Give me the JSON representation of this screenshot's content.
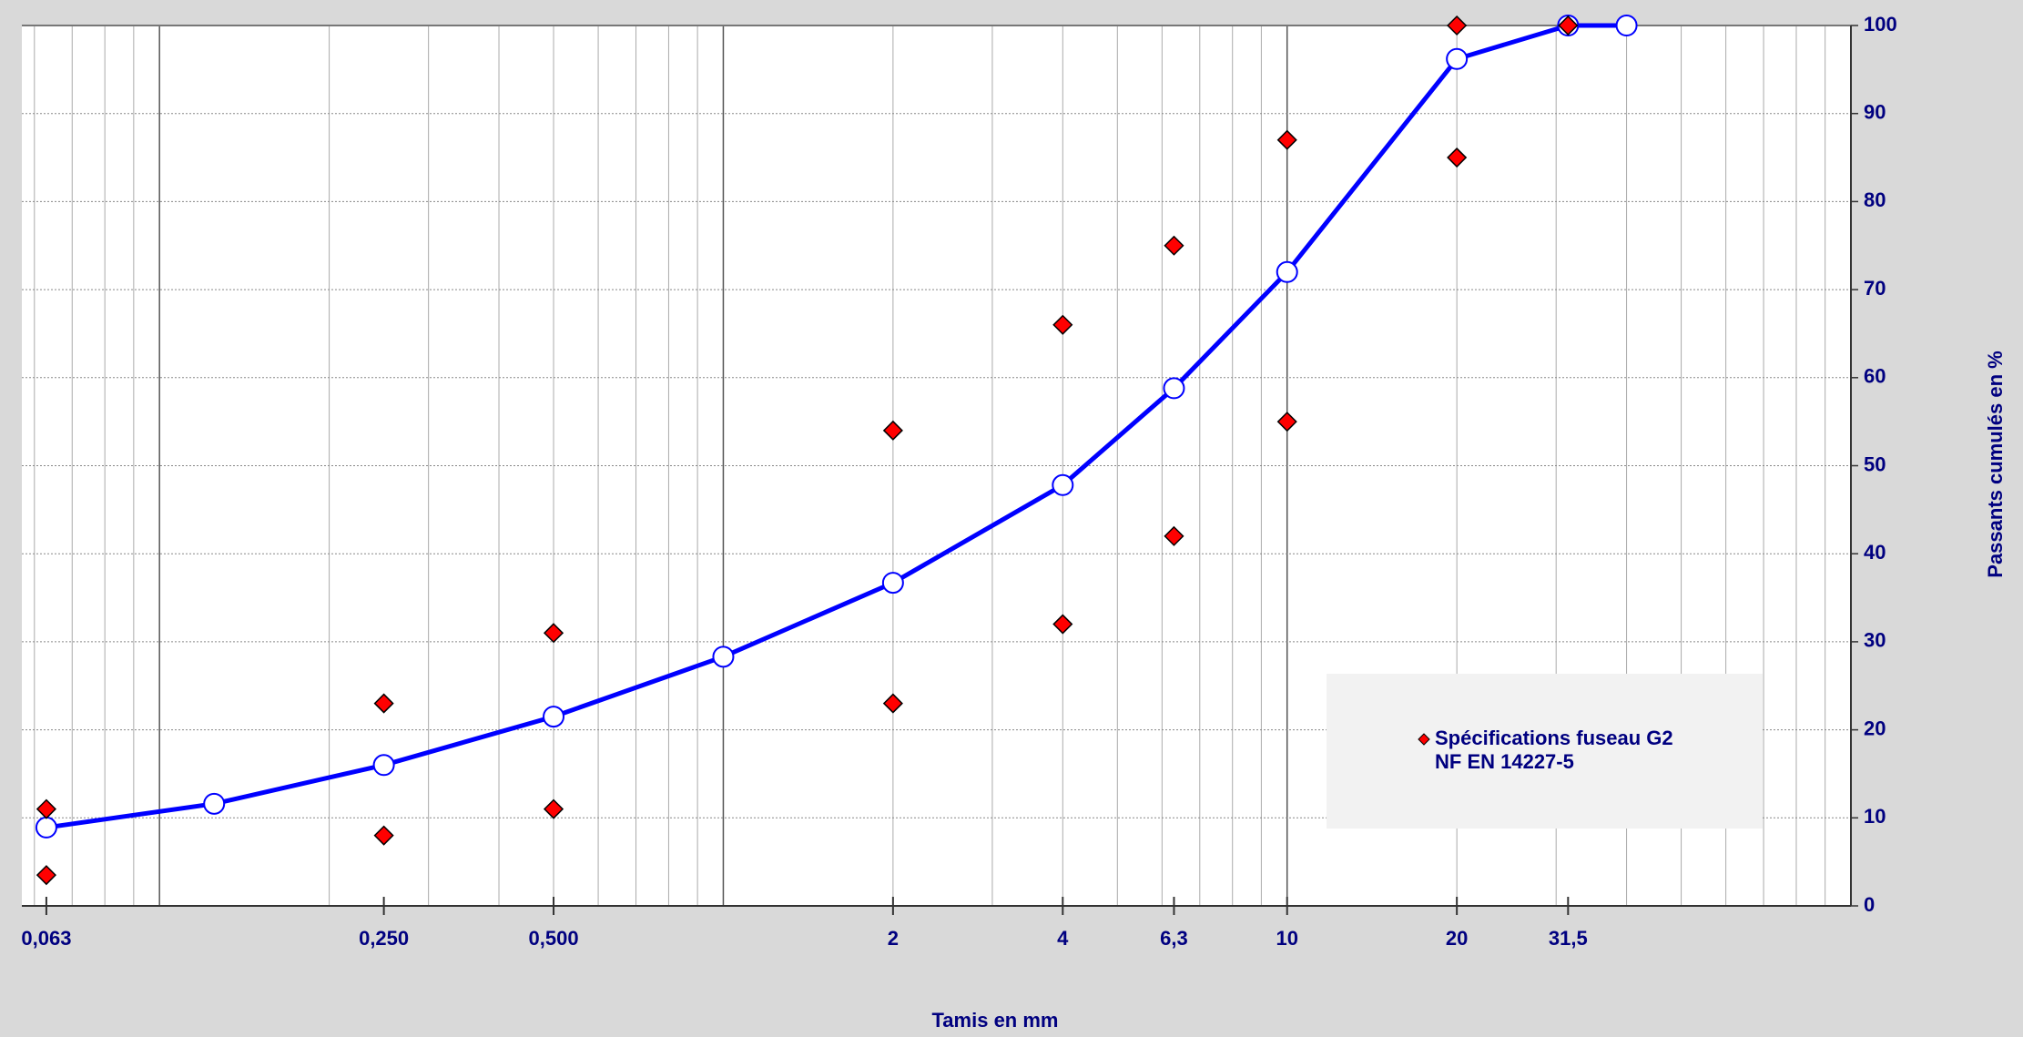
{
  "chart_data": {
    "type": "line",
    "x_label": "Tamis en mm",
    "y_label": "Passants cumulés en %",
    "xscale": "log",
    "grid": true,
    "xlim": [
      0.057,
      100
    ],
    "ylim": [
      0,
      100
    ],
    "xticks": [
      {
        "value": 0.063,
        "label": "0,063"
      },
      {
        "value": 0.25,
        "label": "0,250"
      },
      {
        "value": 0.5,
        "label": "0,500"
      },
      2,
      4,
      {
        "value": 6.3,
        "label": "6,3"
      },
      10,
      20,
      {
        "value": 31.5,
        "label": "31,5"
      }
    ],
    "yticks": [
      0,
      10,
      20,
      30,
      40,
      50,
      60,
      70,
      80,
      90,
      100
    ],
    "legend_position": "lower right",
    "series": [
      {
        "color": "#0000ff",
        "x": [
          0.063,
          0.125,
          0.25,
          0.5,
          1,
          2,
          4,
          6.3,
          10,
          20,
          31.5,
          40
        ],
        "values": [
          8.9,
          11.6,
          16,
          21.5,
          28.3,
          36.7,
          47.8,
          58.8,
          72,
          96.2,
          100,
          100
        ]
      },
      {
        "name": "Spécifications fuseau G2",
        "legend_note": "NF EN 14227-5",
        "type": "scatter",
        "color": "#ff0000",
        "x": [
          0.063,
          0.063,
          0.25,
          0.25,
          0.5,
          0.5,
          2,
          2,
          4,
          4,
          6.3,
          6.3,
          10,
          10,
          20,
          20,
          31.5,
          31.5
        ],
        "values": [
          11,
          3.5,
          23,
          8,
          31,
          11,
          54,
          23,
          66,
          32,
          75,
          42,
          87,
          55,
          100,
          85,
          100,
          100
        ]
      }
    ]
  }
}
